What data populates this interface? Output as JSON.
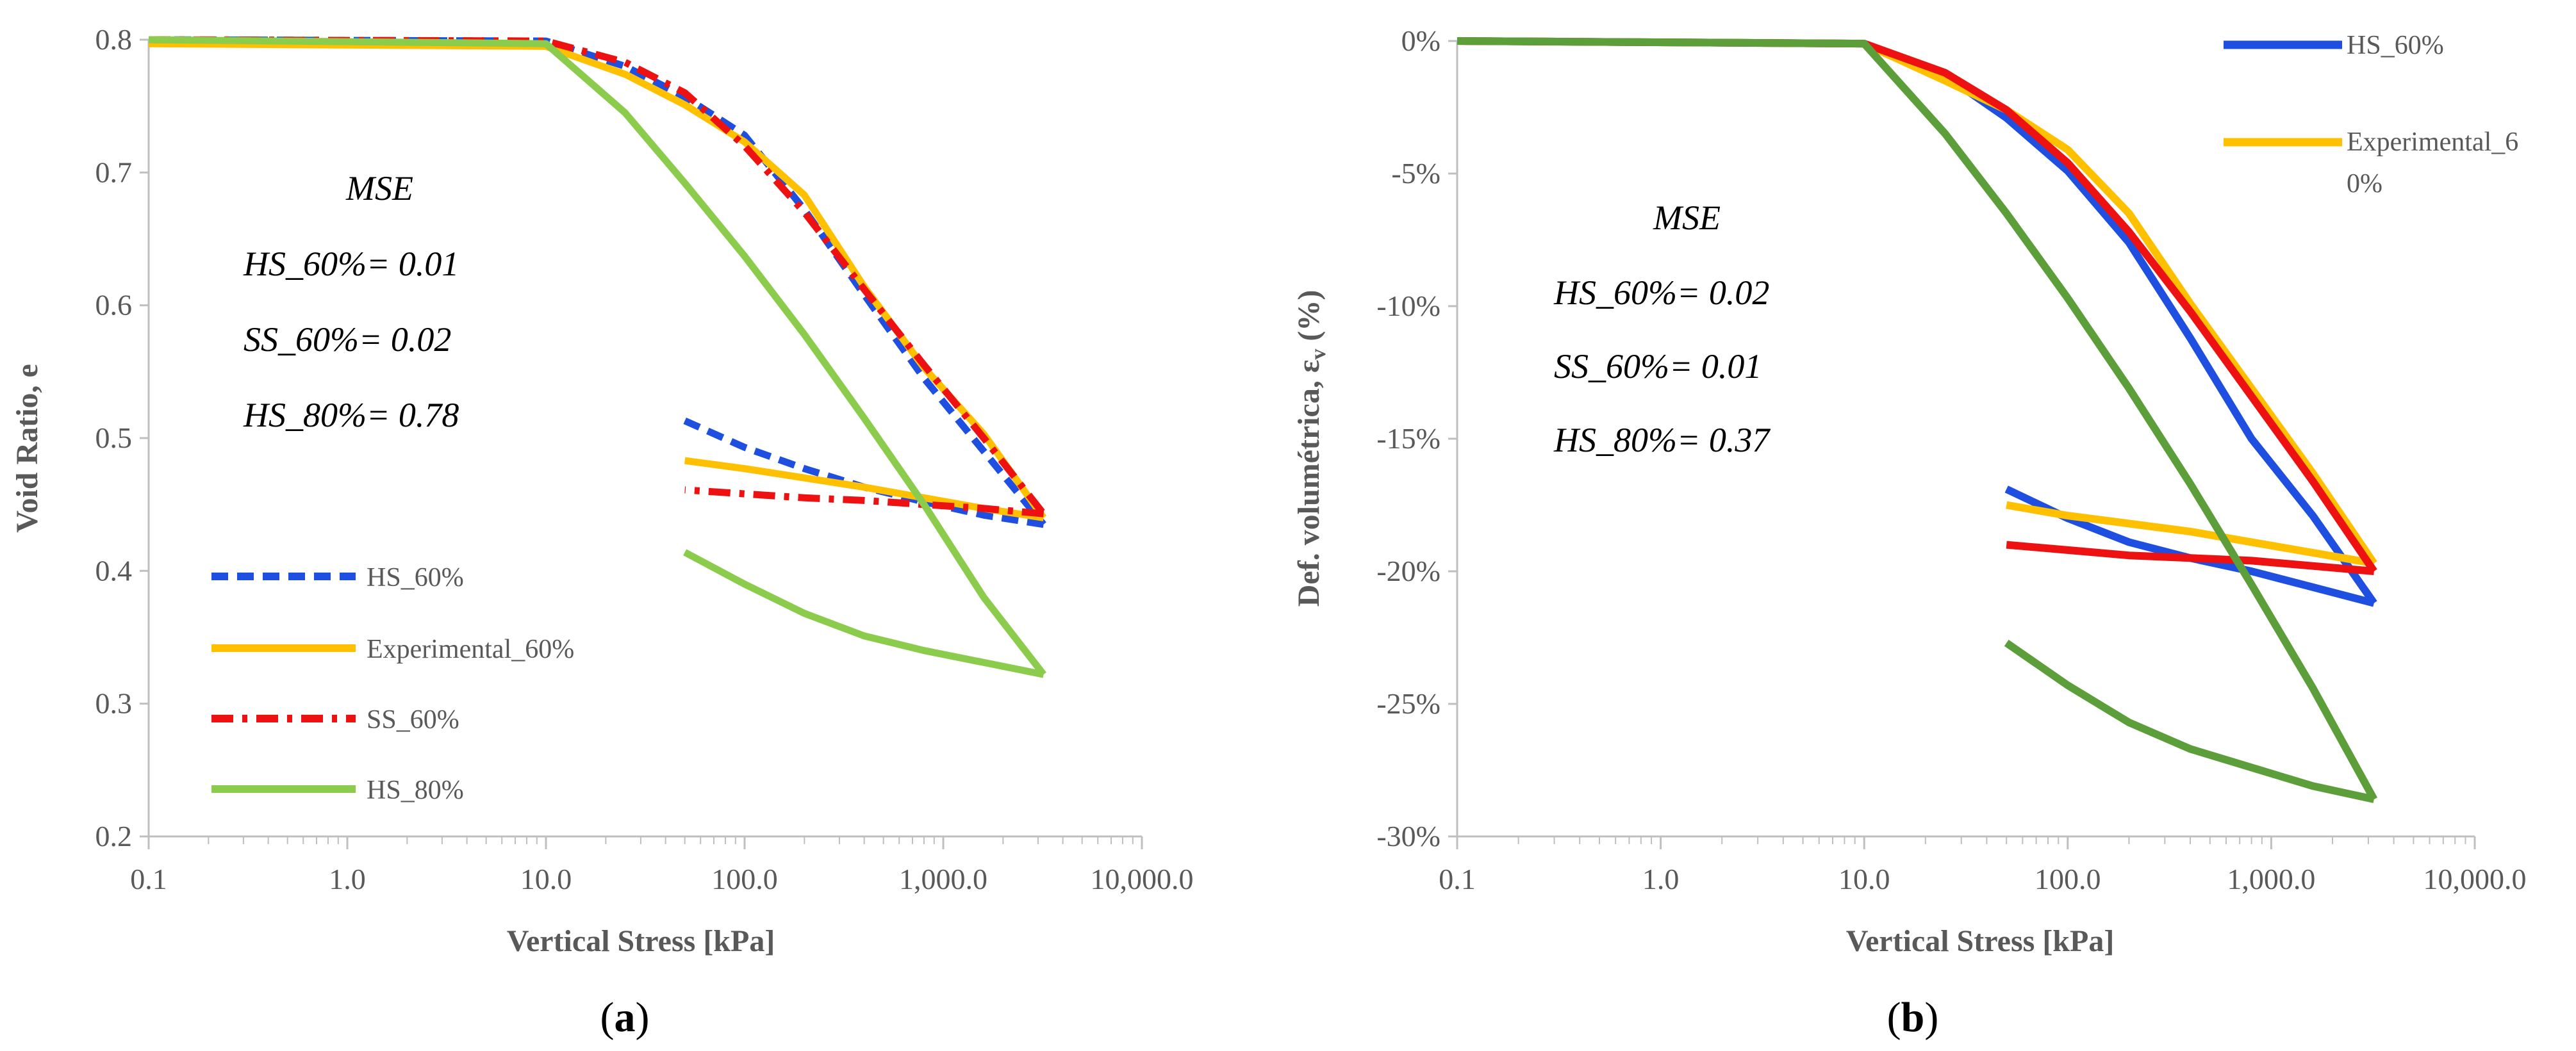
{
  "figure": {
    "panels": [
      "a",
      "b"
    ]
  },
  "chart_data": [
    {
      "type": "line",
      "panel_label": "a",
      "xlabel": "Vertical Stress [kPa]",
      "ylabel": "Void Ratio, e",
      "xscale": "log",
      "xlim": [
        0.1,
        10000
      ],
      "ylim": [
        0.2,
        0.8
      ],
      "grid": false,
      "x_tick_labels": [
        "0.1",
        "1.0",
        "10.0",
        "100.0",
        "1,000.0",
        "10,000.0"
      ],
      "x_tick_values": [
        0.1,
        1,
        10,
        100,
        1000,
        10000
      ],
      "y_tick_labels": [
        "0.2",
        "0.3",
        "0.4",
        "0.5",
        "0.6",
        "0.7",
        "0.8"
      ],
      "y_tick_values": [
        0.2,
        0.3,
        0.4,
        0.5,
        0.6,
        0.7,
        0.8
      ],
      "annotation": {
        "title": "MSE",
        "lines": [
          "HS_60%= 0.01",
          "SS_60%= 0.02",
          "HS_80%= 0.78"
        ]
      },
      "legend_position": "lower-left",
      "series": [
        {
          "name": "HS_60%",
          "color": "#1f4fe0",
          "dash": "dashed",
          "x": [
            0.1,
            10,
            25,
            50,
            100,
            200,
            400,
            800,
            1600,
            3200
          ],
          "y": [
            0.8,
            0.799,
            0.78,
            0.757,
            0.728,
            0.672,
            0.608,
            0.545,
            0.49,
            0.435
          ],
          "unload_x": [
            3200,
            1600,
            800,
            400,
            200,
            100,
            50
          ],
          "unload_y": [
            0.435,
            0.442,
            0.452,
            0.463,
            0.477,
            0.493,
            0.513
          ]
        },
        {
          "name": "Experimental_60%",
          "color": "#ffc000",
          "dash": "solid",
          "x": [
            0.1,
            10,
            25,
            50,
            100,
            200,
            400,
            800,
            1600,
            3200
          ],
          "y": [
            0.797,
            0.795,
            0.774,
            0.751,
            0.723,
            0.683,
            0.614,
            0.553,
            0.503,
            0.44
          ],
          "unload_x": [
            3200,
            1600,
            800,
            400,
            200,
            100,
            50
          ],
          "unload_y": [
            0.44,
            0.447,
            0.455,
            0.463,
            0.47,
            0.477,
            0.483
          ]
        },
        {
          "name": "SS_60%",
          "color": "#ee1111",
          "dash": "dashdot",
          "x": [
            0.1,
            10,
            25,
            50,
            100,
            200,
            400,
            800,
            1600,
            3200
          ],
          "y": [
            0.8,
            0.799,
            0.783,
            0.76,
            0.72,
            0.67,
            0.612,
            0.555,
            0.5,
            0.443
          ],
          "unload_x": [
            3200,
            1600,
            800,
            400,
            200,
            100,
            50
          ],
          "unload_y": [
            0.443,
            0.447,
            0.45,
            0.453,
            0.455,
            0.458,
            0.461
          ]
        },
        {
          "name": "HS_80%",
          "color": "#8ccc4c",
          "dash": "solid",
          "x": [
            0.1,
            10,
            25,
            50,
            100,
            200,
            400,
            800,
            1600,
            3200
          ],
          "y": [
            0.8,
            0.797,
            0.745,
            0.692,
            0.637,
            0.578,
            0.515,
            0.45,
            0.38,
            0.322
          ],
          "unload_x": [
            3200,
            1600,
            800,
            400,
            200,
            100,
            50
          ],
          "unload_y": [
            0.322,
            0.331,
            0.34,
            0.351,
            0.368,
            0.39,
            0.414
          ]
        }
      ]
    },
    {
      "type": "line",
      "panel_label": "b",
      "xlabel": "Vertical Stress [kPa]",
      "ylabel": "Def. volumétrica, εv (%)",
      "ylabel_main": "Def. volumétrica, ε",
      "ylabel_sub": "v",
      "ylabel_end": " (%)",
      "xscale": "log",
      "xlim": [
        0.1,
        10000
      ],
      "ylim": [
        -30,
        0
      ],
      "grid": false,
      "x_tick_labels": [
        "0.1",
        "1.0",
        "10.0",
        "100.0",
        "1,000.0",
        "10,000.0"
      ],
      "x_tick_values": [
        0.1,
        1,
        10,
        100,
        1000,
        10000
      ],
      "y_tick_labels": [
        "0%",
        "-5%",
        "-10%",
        "-15%",
        "-20%",
        "-25%",
        "-30%"
      ],
      "y_tick_values": [
        0,
        -5,
        -10,
        -15,
        -20,
        -25,
        -30
      ],
      "annotation": {
        "title": "MSE",
        "lines": [
          "HS_60%= 0.02",
          "SS_60%= 0.01",
          "HS_80%= 0.37"
        ]
      },
      "legend_position": "top-right",
      "legend_entries": [
        "HS_60%",
        "Experimental_6",
        "0%"
      ],
      "series": [
        {
          "name": "HS_60%",
          "color": "#1f4fe0",
          "dash": "solid",
          "x": [
            0.1,
            10,
            25,
            50,
            100,
            200,
            400,
            800,
            1600,
            3200
          ],
          "y": [
            0,
            -0.1,
            -1.3,
            -2.9,
            -4.9,
            -7.6,
            -11.2,
            -15.0,
            -17.9,
            -21.2
          ],
          "unload_x": [
            3200,
            1600,
            800,
            400,
            200,
            100,
            50
          ],
          "unload_y": [
            -21.2,
            -20.6,
            -20.0,
            -19.5,
            -18.9,
            -18.0,
            -16.9
          ]
        },
        {
          "name": "Experimental_60%",
          "color": "#ffc000",
          "dash": "solid",
          "x": [
            0.1,
            10,
            25,
            50,
            100,
            200,
            400,
            800,
            1600,
            3200
          ],
          "y": [
            0,
            -0.1,
            -1.5,
            -2.6,
            -4.1,
            -6.5,
            -9.9,
            -13.1,
            -16.3,
            -19.7
          ],
          "unload_x": [
            3200,
            1600,
            800,
            400,
            200,
            100,
            50
          ],
          "unload_y": [
            -19.7,
            -19.3,
            -18.9,
            -18.5,
            -18.2,
            -17.9,
            -17.5
          ]
        },
        {
          "name": "SS_60%",
          "color": "#ee1111",
          "dash": "solid",
          "x": [
            0.1,
            10,
            25,
            50,
            100,
            200,
            400,
            800,
            1600,
            3200
          ],
          "y": [
            0,
            -0.1,
            -1.2,
            -2.6,
            -4.6,
            -7.2,
            -10.2,
            -13.4,
            -16.6,
            -20.0
          ],
          "unload_x": [
            3200,
            1600,
            800,
            400,
            200,
            100,
            50
          ],
          "unload_y": [
            -20.0,
            -19.8,
            -19.6,
            -19.5,
            -19.4,
            -19.2,
            -19.0
          ]
        },
        {
          "name": "HS_80%",
          "color": "#5c9e3a",
          "dash": "solid",
          "x": [
            0.1,
            10,
            25,
            50,
            100,
            200,
            400,
            800,
            1600,
            3200
          ],
          "y": [
            0,
            -0.1,
            -3.5,
            -6.5,
            -9.7,
            -13.1,
            -16.7,
            -20.5,
            -24.4,
            -28.6
          ],
          "unload_x": [
            3200,
            1600,
            800,
            400,
            200,
            100,
            50
          ],
          "unload_y": [
            -28.6,
            -28.1,
            -27.4,
            -26.7,
            -25.7,
            -24.3,
            -22.7
          ]
        }
      ]
    }
  ]
}
